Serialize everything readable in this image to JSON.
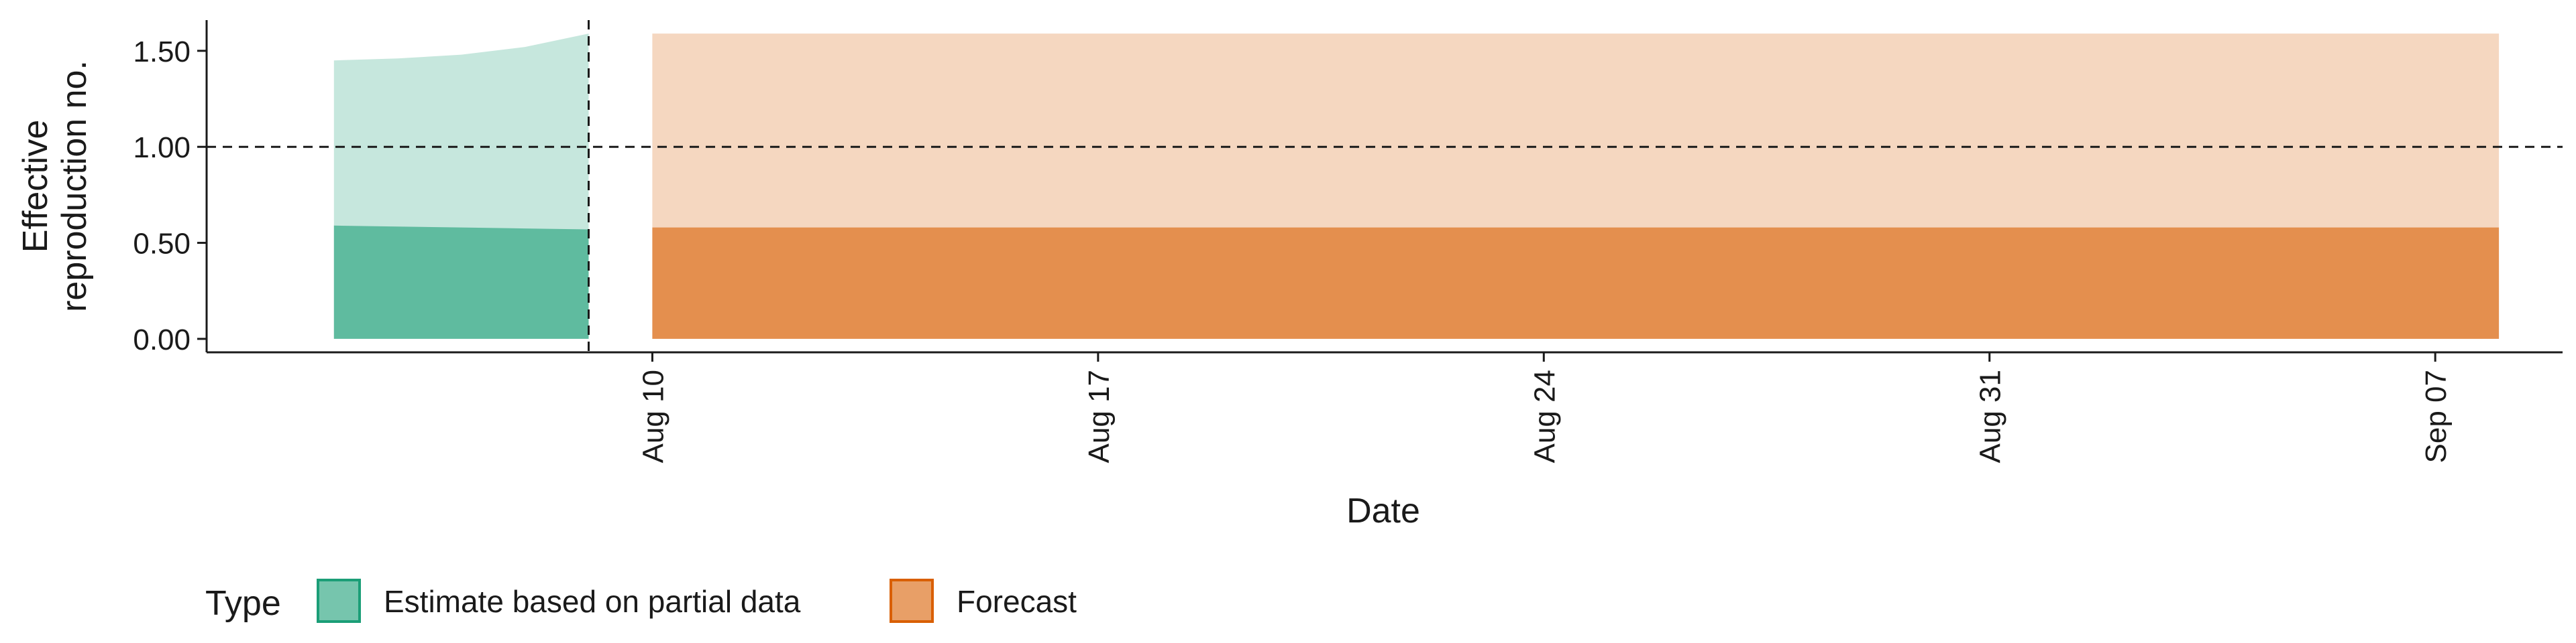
{
  "chart_data": {
    "type": "area",
    "title": "",
    "xlabel": "Date",
    "ylabel": [
      "Effective",
      "reproduction no."
    ],
    "x_ticks": [
      "Aug 10",
      "Aug 17",
      "Aug 24",
      "Aug 31",
      "Sep 07"
    ],
    "x_tick_dates": [
      "2020-08-10",
      "2020-08-17",
      "2020-08-24",
      "2020-08-31",
      "2020-09-07"
    ],
    "xlim": [
      "2020-08-03",
      "2020-09-09"
    ],
    "y_ticks": [
      "0.00",
      "0.50",
      "1.00",
      "1.50"
    ],
    "ylim": [
      -0.07,
      1.66
    ],
    "reference_lines": {
      "horizontal_y": 1.0,
      "vertical_date": "2020-08-09"
    },
    "grid": false,
    "series": [
      {
        "type": "Estimate based on partial data",
        "color": "#1b9e77",
        "band": "outer",
        "x": [
          "2020-08-05",
          "2020-08-06",
          "2020-08-07",
          "2020-08-08",
          "2020-08-09"
        ],
        "lower": [
          0,
          0,
          0,
          0,
          0
        ],
        "upper": [
          1.45,
          1.46,
          1.48,
          1.52,
          1.59
        ]
      },
      {
        "type": "Estimate based on partial data",
        "color": "#1b9e77",
        "band": "inner",
        "x": [
          "2020-08-05",
          "2020-08-06",
          "2020-08-07",
          "2020-08-08",
          "2020-08-09"
        ],
        "lower": [
          0,
          0,
          0,
          0,
          0
        ],
        "upper": [
          0.59,
          0.585,
          0.58,
          0.575,
          0.57
        ]
      },
      {
        "type": "Forecast",
        "color": "#d95f02",
        "band": "outer",
        "x": [
          "2020-08-10",
          "2020-09-08"
        ],
        "lower": [
          0,
          0
        ],
        "upper": [
          1.59,
          1.59
        ]
      },
      {
        "type": "Forecast",
        "color": "#d95f02",
        "band": "inner",
        "x": [
          "2020-08-10",
          "2020-09-08"
        ],
        "lower": [
          0,
          0
        ],
        "upper": [
          0.58,
          0.58
        ]
      }
    ],
    "legend": {
      "title": "Type",
      "position": "bottom-left",
      "entries": [
        {
          "label": "Estimate based on partial data",
          "color": "#1b9e77"
        },
        {
          "label": "Forecast",
          "color": "#d95f02"
        }
      ]
    }
  }
}
